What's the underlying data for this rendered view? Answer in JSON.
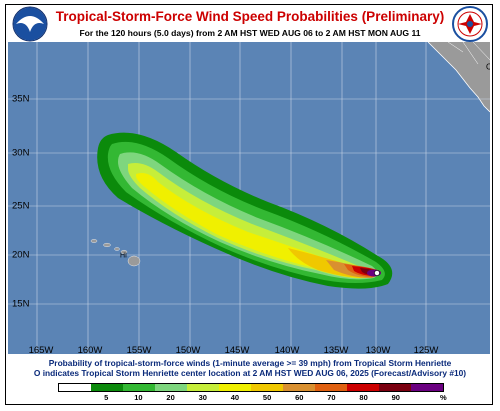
{
  "header": {
    "title": "Tropical-Storm-Force Wind Speed Probabilities (Preliminary)",
    "subtitle": "For the 120 hours (5.0 days) from 2 AM HST WED AUG 06 to 2 AM HST MON AUG 11"
  },
  "logos": {
    "left": "noaa-logo",
    "right": "nws-logo"
  },
  "map": {
    "region_label": "CA",
    "island_label": "HI",
    "lon_labels": [
      "165W",
      "160W",
      "155W",
      "150W",
      "145W",
      "140W",
      "135W",
      "130W",
      "125W"
    ],
    "lat_labels": [
      "35N",
      "30N",
      "25N",
      "20N",
      "15N"
    ],
    "ocean_color": "#5b84b5",
    "land_color": "#9a9a9a",
    "grid_color": "#c9d6e6",
    "storm_center": {
      "lon": -129.5,
      "lat": 18.0
    }
  },
  "captions": {
    "line1": "Probability of tropical-storm-force winds (1-minute average >= 39 mph) from Tropical Storm Henriette",
    "line2": "O indicates Tropical Storm Henriette center location at 2 AM HST WED AUG 06, 2025 (Forecast/Advisory #10)"
  },
  "legend": {
    "colors": [
      "#ffffff",
      "#0b8a0b",
      "#33b833",
      "#7ed67e",
      "#c6ee3a",
      "#f0f000",
      "#f0c800",
      "#d99030",
      "#e06010",
      "#cc0000",
      "#7a0010",
      "#6a0080"
    ],
    "labels": [
      "5",
      "10",
      "20",
      "30",
      "40",
      "50",
      "60",
      "70",
      "80",
      "90"
    ],
    "unit": "%"
  }
}
